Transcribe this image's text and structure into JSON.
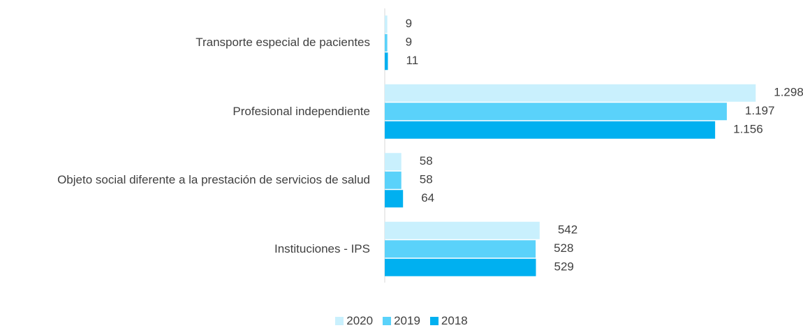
{
  "chart_data": {
    "type": "hbar",
    "categories": [
      "Transporte especial de pacientes",
      "Profesional independiente",
      "Objeto social diferente a la prestación de servicios de salud",
      "Instituciones - IPS"
    ],
    "xlim": [
      0,
      1400
    ],
    "series": [
      {
        "name": "2020",
        "color": "#c9f0fd",
        "values": [
          9,
          1298,
          58,
          542
        ],
        "value_labels": [
          "9",
          "1.298",
          "58",
          "542"
        ]
      },
      {
        "name": "2019",
        "color": "#5ad2fa",
        "values": [
          9,
          1197,
          58,
          528
        ],
        "value_labels": [
          "9",
          "1.197",
          "58",
          "528"
        ]
      },
      {
        "name": "2018",
        "color": "#00b0f0",
        "values": [
          11,
          1156,
          64,
          529
        ],
        "value_labels": [
          "11",
          "1.156",
          "64",
          "529"
        ]
      }
    ]
  }
}
